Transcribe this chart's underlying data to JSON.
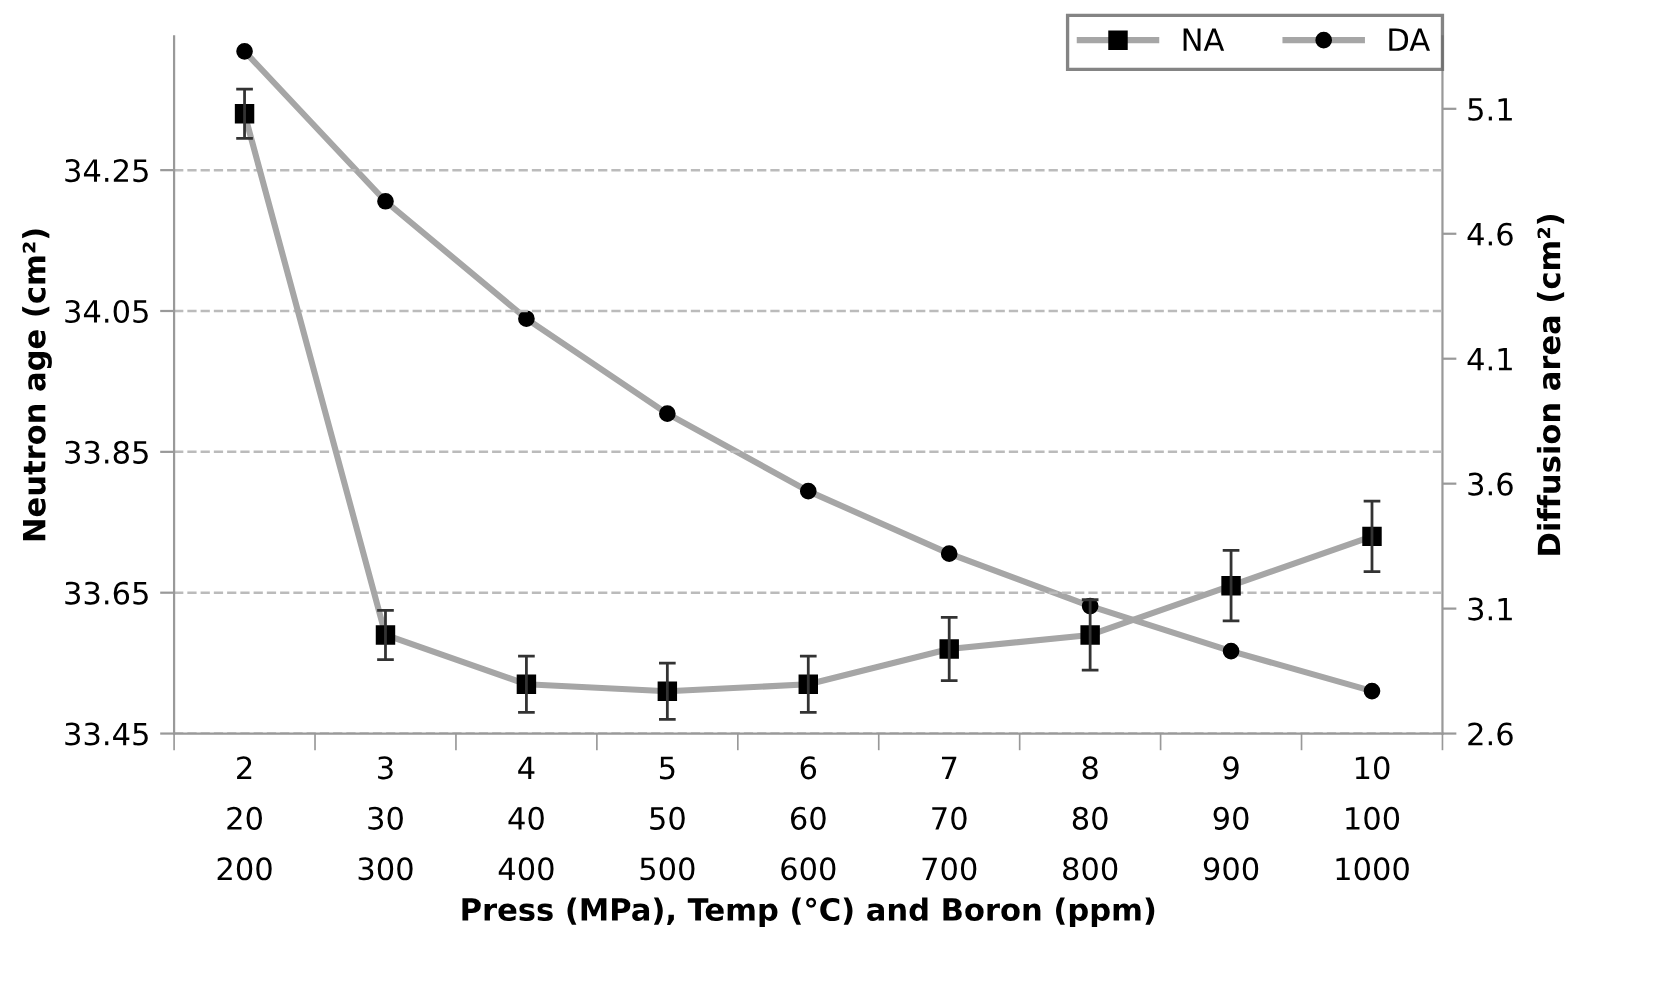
{
  "chart_data": {
    "type": "line",
    "xlabel": "Press (MPa), Temp (°C) and Boron (ppm)",
    "ylabel": "Neutron age (cm²)",
    "y2label": "Diffusion area (cm²)",
    "categories": [
      "2\n20\n200",
      "3\n30\n300",
      "4\n40\n400",
      "5\n50\n500",
      "6\n60\n600",
      "7\n70\n700",
      "8\n80\n800",
      "9\n90\n900",
      "10\n100\n1000"
    ],
    "series": [
      {
        "name": "NA",
        "color": "#a6a6a6",
        "marker": "square",
        "values": [
          34.33,
          33.59,
          33.52,
          33.51,
          33.52,
          33.57,
          33.59,
          33.66,
          33.73
        ],
        "errors": [
          0.035,
          0.035,
          0.04,
          0.04,
          0.04,
          0.045,
          0.05,
          0.05,
          0.05
        ]
      },
      {
        "name": "DA",
        "color": "#a6a6a6",
        "marker": "circle",
        "axis": "y2",
        "values": [
          5.33,
          4.73,
          4.26,
          3.88,
          3.57,
          3.32,
          3.11,
          2.93,
          2.77
        ]
      }
    ],
    "ylim": [
      33.45,
      34.44
    ],
    "yticks": [
      33.45,
      33.65,
      33.85,
      34.05,
      34.25
    ],
    "y2lim": [
      2.6,
      5.39
    ],
    "y2ticks": [
      2.6,
      3.1,
      3.6,
      4.1,
      4.6,
      5.1
    ],
    "grid": "y",
    "legend": "top right"
  }
}
